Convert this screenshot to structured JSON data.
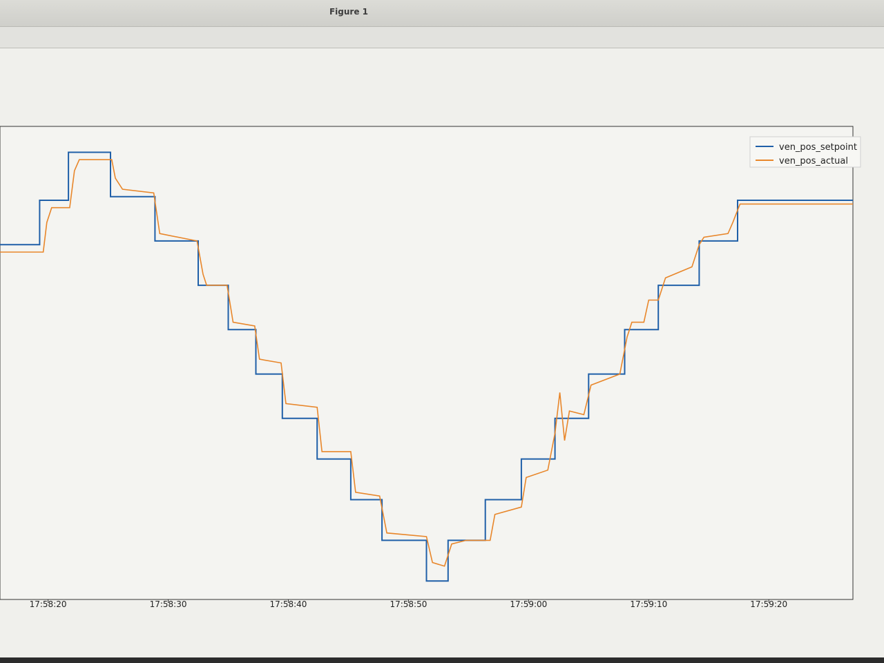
{
  "window": {
    "title": "Figure 1"
  },
  "chart_data": {
    "type": "line",
    "grid": false,
    "legend_position": "top-right",
    "xlabel": "",
    "ylabel": "",
    "xlim": [
      "17:58:16",
      "17:59:27"
    ],
    "ylim": [
      0,
      12
    ],
    "x_ticks": [
      "17:58:20",
      "17:58:30",
      "17:58:40",
      "17:58:50",
      "17:59:00",
      "17:59:10",
      "17:59:20"
    ],
    "series": [
      {
        "name": "ven_pos_setpoint",
        "color": "#1f5fa8",
        "step": true,
        "points": [
          [
            "17:58:16",
            8.0
          ],
          [
            "17:58:19.3",
            9.2
          ],
          [
            "17:58:21.7",
            10.5
          ],
          [
            "17:58:25.2",
            9.3
          ],
          [
            "17:58:28.9",
            8.1
          ],
          [
            "17:58:32.5",
            6.9
          ],
          [
            "17:58:35.0",
            5.7
          ],
          [
            "17:58:37.3",
            4.5
          ],
          [
            "17:58:39.5",
            3.3
          ],
          [
            "17:58:42.4",
            2.2
          ],
          [
            "17:58:45.2",
            1.1
          ],
          [
            "17:58:47.8",
            0.0
          ],
          [
            "17:58:51.5",
            -1.1
          ],
          [
            "17:58:53.3",
            0.0
          ],
          [
            "17:58:56.4",
            1.1
          ],
          [
            "17:58:59.4",
            2.2
          ],
          [
            "17:59:02.2",
            3.3
          ],
          [
            "17:59:05.0",
            4.5
          ],
          [
            "17:59:08.0",
            5.7
          ],
          [
            "17:59:10.8",
            6.9
          ],
          [
            "17:59:14.2",
            8.1
          ],
          [
            "17:59:17.4",
            9.2
          ],
          [
            "17:59:27.0",
            9.2
          ]
        ]
      },
      {
        "name": "ven_pos_actual",
        "color": "#e8862a",
        "step": false,
        "points": [
          [
            "17:58:16",
            7.8
          ],
          [
            "17:58:19.6",
            7.8
          ],
          [
            "17:58:19.9",
            8.6
          ],
          [
            "17:58:20.3",
            9.0
          ],
          [
            "17:58:21.8",
            9.0
          ],
          [
            "17:58:22.2",
            10.0
          ],
          [
            "17:58:22.6",
            10.3
          ],
          [
            "17:58:25.3",
            10.3
          ],
          [
            "17:58:25.6",
            9.8
          ],
          [
            "17:58:26.2",
            9.5
          ],
          [
            "17:58:28.8",
            9.4
          ],
          [
            "17:58:29.3",
            8.3
          ],
          [
            "17:58:32.4",
            8.1
          ],
          [
            "17:58:32.9",
            7.2
          ],
          [
            "17:58:33.2",
            6.9
          ],
          [
            "17:58:34.9",
            6.9
          ],
          [
            "17:58:35.4",
            5.9
          ],
          [
            "17:58:37.2",
            5.8
          ],
          [
            "17:58:37.6",
            4.9
          ],
          [
            "17:58:39.4",
            4.8
          ],
          [
            "17:58:39.8",
            3.7
          ],
          [
            "17:58:42.4",
            3.6
          ],
          [
            "17:58:42.8",
            2.4
          ],
          [
            "17:58:45.2",
            2.4
          ],
          [
            "17:58:45.6",
            1.3
          ],
          [
            "17:58:47.6",
            1.2
          ],
          [
            "17:58:48.2",
            0.2
          ],
          [
            "17:58:51.5",
            0.1
          ],
          [
            "17:58:52.0",
            -0.6
          ],
          [
            "17:58:53.0",
            -0.7
          ],
          [
            "17:58:53.6",
            -0.1
          ],
          [
            "17:58:54.8",
            0.0
          ],
          [
            "17:58:56.8",
            0.0
          ],
          [
            "17:58:57.2",
            0.7
          ],
          [
            "17:58:59.4",
            0.9
          ],
          [
            "17:58:59.8",
            1.7
          ],
          [
            "17:59:01.6",
            1.9
          ],
          [
            "17:59:02.2",
            2.9
          ],
          [
            "17:59:02.6",
            4.0
          ],
          [
            "17:59:03.0",
            2.7
          ],
          [
            "17:59:03.4",
            3.5
          ],
          [
            "17:59:04.6",
            3.4
          ],
          [
            "17:59:05.2",
            4.2
          ],
          [
            "17:59:07.6",
            4.5
          ],
          [
            "17:59:08.2",
            5.5
          ],
          [
            "17:59:08.6",
            5.9
          ],
          [
            "17:59:09.6",
            5.9
          ],
          [
            "17:59:10.0",
            6.5
          ],
          [
            "17:59:10.8",
            6.5
          ],
          [
            "17:59:11.4",
            7.1
          ],
          [
            "17:59:13.6",
            7.4
          ],
          [
            "17:59:14.2",
            8.0
          ],
          [
            "17:59:14.6",
            8.2
          ],
          [
            "17:59:16.6",
            8.3
          ],
          [
            "17:59:17.0",
            8.6
          ],
          [
            "17:59:17.6",
            9.1
          ],
          [
            "17:59:27.0",
            9.1
          ]
        ]
      }
    ]
  }
}
